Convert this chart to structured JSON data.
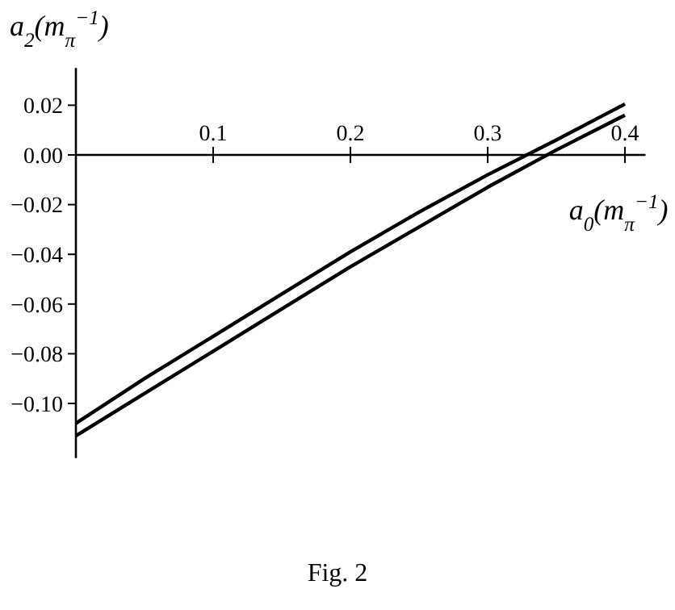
{
  "chart_data": {
    "type": "line",
    "xlabel": "a$_{0}$(m$_{π}$$^{−1}$)",
    "ylabel": "a$_{2}$(m$_{π}$$^{−1}$)",
    "annotations": [
      "Fig. 2"
    ],
    "x": [
      0,
      0.05,
      0.1,
      0.15,
      0.2,
      0.25,
      0.3,
      0.35,
      0.4
    ],
    "series": [
      {
        "color": "#000000",
        "values": [
          -0.108,
          -0.09,
          -0.073,
          -0.056,
          -0.039,
          -0.023,
          -0.008,
          0.006,
          0.0205
        ]
      },
      {
        "color": "#000000",
        "values": [
          -0.113,
          -0.096,
          -0.079,
          -0.062,
          -0.045,
          -0.029,
          -0.013,
          0.002,
          0.016
        ]
      }
    ],
    "xlim": [
      0,
      0.415
    ],
    "ylim": [
      -0.122,
      0.035
    ],
    "xticks": [
      0.1,
      0.2,
      0.3,
      0.4
    ],
    "yticks": [
      {
        "value": 0.02,
        "label": "0.02"
      },
      {
        "value": 0,
        "label": "0.00"
      },
      {
        "value": -0.02,
        "label": "−0.02"
      },
      {
        "value": -0.04,
        "label": "−0.04"
      },
      {
        "value": -0.06,
        "label": "−0.06"
      },
      {
        "value": -0.08,
        "label": "−0.08"
      },
      {
        "value": -0.1,
        "label": "−0.10"
      }
    ],
    "grid": false,
    "marker": "none",
    "line_style": "solid"
  }
}
